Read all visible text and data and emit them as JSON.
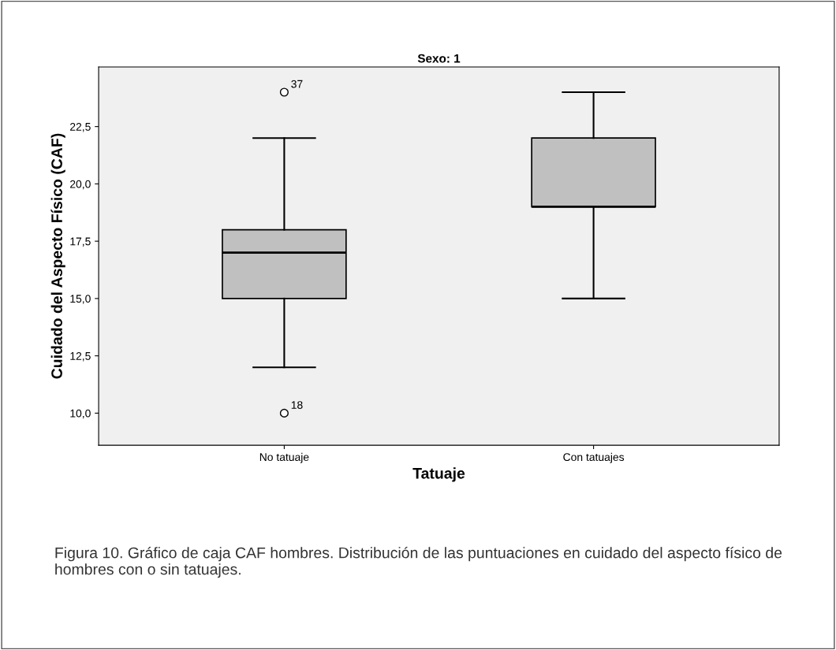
{
  "chart_data": {
    "type": "box",
    "title": "Sexo: 1",
    "xlabel": "Tatuaje",
    "ylabel": "Cuidado del Aspecto Físico (CAF)",
    "categories": [
      "No tatuaje",
      "Con tatuajes"
    ],
    "boxes": [
      {
        "low": 12,
        "q1": 15,
        "median": 17,
        "q3": 18,
        "high": 22,
        "outliers": [
          24,
          10
        ]
      },
      {
        "low": 15,
        "q1": 19,
        "median": 19,
        "q3": 22,
        "high": 24
      }
    ],
    "color": "#c0c0c0",
    "ylim": [
      8.6,
      25.1
    ],
    "yticks": [
      {
        "value": 10,
        "label": "10,0"
      },
      {
        "value": 12.5,
        "label": "12,5"
      },
      {
        "value": 15,
        "label": "15,0"
      },
      {
        "value": 17.5,
        "label": "17,5"
      },
      {
        "value": 20,
        "label": "20,0"
      },
      {
        "value": 22.5,
        "label": "22,5"
      }
    ],
    "grid": false,
    "legend": false,
    "annotations": [
      "37",
      "18",
      "Figura 10. Gráfico de caja CAF hombres. Distribución de las puntuaciones en cuidado del aspecto físico de hombres con o sin tatuajes."
    ]
  }
}
